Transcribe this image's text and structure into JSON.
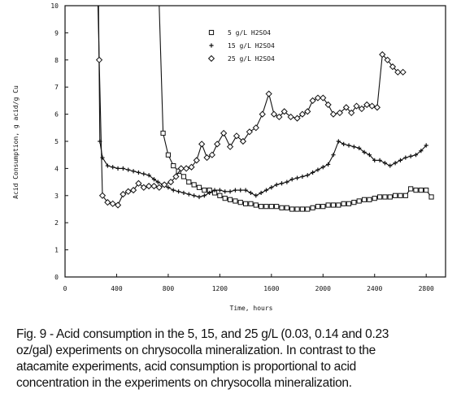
{
  "caption": [
    "Fig. 9 - Acid consumption in the 5, 15, and 25 g/L (0.03, 0.14 and 0.23",
    "oz/gal) experiments on chrysocolla mineralization. In contrast to the",
    "atacamite experiments, acid consumption is proportional to acid",
    "concentration in the experiments on chrysocolla mineralization."
  ],
  "chart_data": {
    "type": "line",
    "title": "",
    "xlabel": "Time, hours",
    "ylabel": "Acid Consumption, g acid/g Cu",
    "xlim": [
      0,
      2950
    ],
    "ylim": [
      0,
      10
    ],
    "x_ticks": [
      0,
      400,
      800,
      1200,
      1600,
      2000,
      2400,
      2800
    ],
    "y_ticks": [
      0,
      1,
      2,
      3,
      4,
      5,
      6,
      7,
      8,
      9,
      10
    ],
    "legend_position": "top-center",
    "series": [
      {
        "name": "5 g/L H2SO4",
        "marker": "square",
        "x": [
          730,
          760,
          800,
          840,
          880,
          920,
          960,
          1000,
          1040,
          1080,
          1120,
          1160,
          1200,
          1240,
          1280,
          1320,
          1360,
          1400,
          1440,
          1480,
          1520,
          1560,
          1600,
          1640,
          1680,
          1720,
          1760,
          1800,
          1840,
          1880,
          1920,
          1960,
          2000,
          2040,
          2080,
          2120,
          2160,
          2200,
          2240,
          2280,
          2320,
          2360,
          2400,
          2440,
          2480,
          2520,
          2560,
          2600,
          2640,
          2680,
          2720,
          2760,
          2800,
          2840
        ],
        "y": [
          10,
          5.3,
          4.5,
          4.1,
          3.9,
          3.7,
          3.5,
          3.4,
          3.3,
          3.2,
          3.2,
          3.1,
          3.0,
          2.9,
          2.85,
          2.8,
          2.75,
          2.7,
          2.7,
          2.65,
          2.6,
          2.6,
          2.6,
          2.6,
          2.55,
          2.55,
          2.5,
          2.5,
          2.5,
          2.5,
          2.55,
          2.6,
          2.6,
          2.65,
          2.65,
          2.65,
          2.7,
          2.7,
          2.75,
          2.8,
          2.85,
          2.85,
          2.9,
          2.95,
          2.95,
          2.95,
          3.0,
          3.0,
          3.0,
          3.25,
          3.2,
          3.2,
          3.2,
          2.95
        ]
      },
      {
        "name": "15 g/L H2SO4",
        "marker": "plus",
        "x": [
          260,
          270,
          290,
          330,
          370,
          410,
          450,
          490,
          530,
          570,
          610,
          650,
          690,
          720,
          760,
          800,
          840,
          880,
          920,
          960,
          1000,
          1040,
          1080,
          1120,
          1160,
          1200,
          1240,
          1280,
          1320,
          1360,
          1400,
          1440,
          1480,
          1520,
          1560,
          1600,
          1640,
          1680,
          1720,
          1760,
          1800,
          1840,
          1880,
          1920,
          1960,
          2000,
          2040,
          2080,
          2120,
          2160,
          2200,
          2240,
          2280,
          2320,
          2360,
          2400,
          2440,
          2480,
          2520,
          2560,
          2600,
          2640,
          2680,
          2720,
          2760,
          2800
        ],
        "y": [
          10,
          5.0,
          4.4,
          4.1,
          4.05,
          4.0,
          4.0,
          3.95,
          3.9,
          3.85,
          3.8,
          3.75,
          3.6,
          3.5,
          3.4,
          3.3,
          3.2,
          3.15,
          3.1,
          3.05,
          3.0,
          2.95,
          3.0,
          3.1,
          3.2,
          3.2,
          3.15,
          3.15,
          3.2,
          3.2,
          3.2,
          3.1,
          3.0,
          3.1,
          3.2,
          3.3,
          3.4,
          3.45,
          3.5,
          3.6,
          3.65,
          3.7,
          3.75,
          3.85,
          3.95,
          4.05,
          4.15,
          4.5,
          5.0,
          4.9,
          4.85,
          4.8,
          4.75,
          4.6,
          4.5,
          4.3,
          4.3,
          4.2,
          4.1,
          4.2,
          4.3,
          4.4,
          4.45,
          4.5,
          4.65,
          4.85
        ]
      },
      {
        "name": "25 g/L H2SO4",
        "marker": "diamond",
        "x": [
          255,
          265,
          290,
          330,
          370,
          410,
          450,
          490,
          530,
          570,
          610,
          650,
          690,
          730,
          770,
          820,
          860,
          900,
          940,
          980,
          1020,
          1060,
          1100,
          1140,
          1180,
          1230,
          1280,
          1330,
          1380,
          1430,
          1480,
          1530,
          1580,
          1620,
          1660,
          1700,
          1750,
          1800,
          1840,
          1880,
          1920,
          1960,
          2000,
          2040,
          2080,
          2130,
          2180,
          2220,
          2260,
          2300,
          2340,
          2380,
          2420,
          2460,
          2500,
          2540,
          2580,
          2620
        ],
        "y": [
          10,
          8.0,
          3.0,
          2.75,
          2.7,
          2.65,
          3.05,
          3.15,
          3.2,
          3.45,
          3.3,
          3.35,
          3.35,
          3.3,
          3.4,
          3.5,
          3.7,
          4.0,
          4.0,
          4.05,
          4.3,
          4.9,
          4.4,
          4.5,
          4.9,
          5.3,
          4.8,
          5.2,
          5.0,
          5.35,
          5.5,
          6.0,
          6.75,
          6.0,
          5.9,
          6.1,
          5.9,
          5.85,
          6.0,
          6.1,
          6.5,
          6.6,
          6.6,
          6.35,
          6.0,
          6.05,
          6.25,
          6.05,
          6.3,
          6.2,
          6.35,
          6.3,
          6.25,
          8.2,
          8.0,
          7.75,
          7.55,
          7.55
        ]
      }
    ]
  }
}
